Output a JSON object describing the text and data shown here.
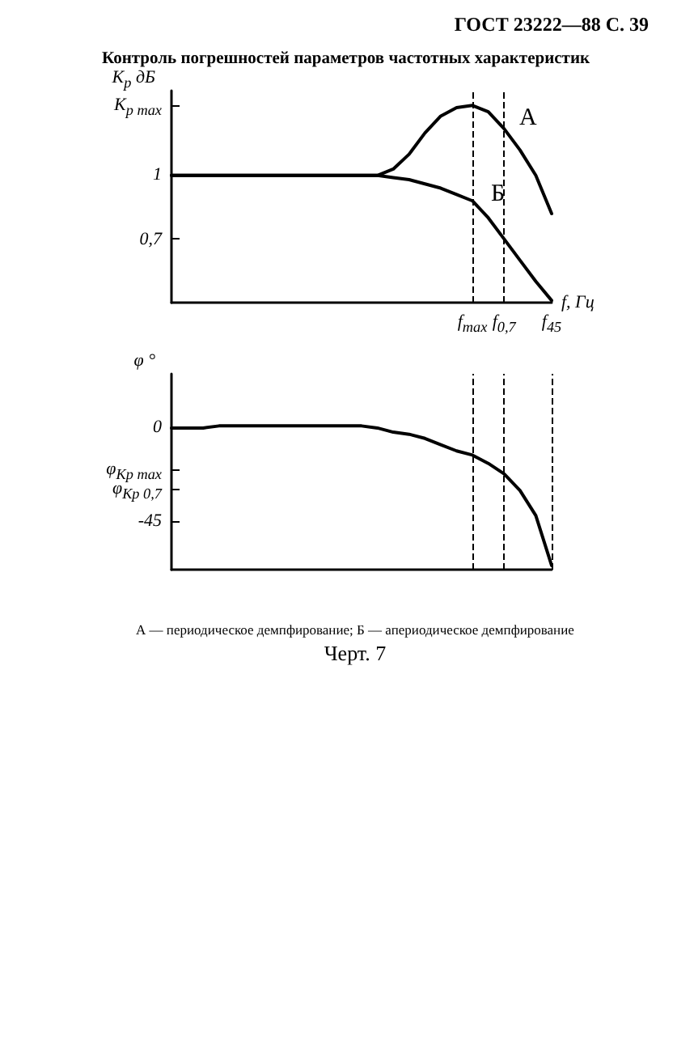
{
  "chart_data": [
    {
      "type": "line",
      "title": "Контроль погрешностей параметров частотных характеристик",
      "annotations": [
        "ГОСТ 23222—88 С. 39"
      ],
      "xlabel": "f, Гц",
      "ylabel": "K$_{p}$ дБ",
      "categories": [
        null,
        null,
        null,
        null,
        null,
        null,
        null,
        null,
        null,
        null,
        null,
        null,
        null,
        null,
        null,
        null,
        null,
        null,
        null,
        "f$_{max}$",
        null,
        "f$_{0,7}$",
        null,
        null,
        "f$_{45}$"
      ],
      "series": [
        {
          "name": "А",
          "color": "#000000",
          "values": [
            1,
            1,
            1,
            1,
            1,
            1,
            1,
            1,
            1,
            1,
            1,
            1,
            1,
            1,
            1.03,
            1.1,
            1.2,
            1.28,
            1.32,
            1.33,
            1.3,
            1.22,
            1.12,
            1.0,
            0.82
          ]
        },
        {
          "name": "Б",
          "color": "#000000",
          "values": [
            1,
            1,
            1,
            1,
            1,
            1,
            1,
            1,
            1,
            1,
            1,
            1,
            1,
            1,
            0.99,
            0.98,
            0.96,
            0.94,
            0.91,
            0.88,
            0.8,
            0.7,
            0.6,
            0.5,
            0.41
          ]
        }
      ],
      "ylim": [
        0.4,
        1.4
      ],
      "yticks": [
        {
          "value": 0.7,
          "label": "0,7"
        },
        1,
        {
          "value": 1.33,
          "label": "K$_{p max}$"
        }
      ],
      "ref_lines": [
        {
          "axis": "x",
          "value": "f$_{max}$",
          "line_style": "dashed",
          "color": "#000000"
        },
        {
          "axis": "x",
          "value": "f$_{0,7}$",
          "line_style": "dashed",
          "color": "#000000"
        }
      ],
      "grid": false,
      "marker": "none",
      "line_style": "solid"
    },
    {
      "type": "line",
      "ylabel": "φ °",
      "annotations": [
        "А — периодическое демпфирование; Б — апериодическое демпфирование",
        "Черт. 7"
      ],
      "categories": [
        null,
        null,
        null,
        null,
        null,
        null,
        null,
        null,
        null,
        null,
        null,
        null,
        null,
        null,
        null,
        null,
        null,
        null,
        null,
        null,
        null,
        null,
        null,
        null,
        null
      ],
      "series": [
        {
          "color": "#000000",
          "values": [
            0,
            0,
            0,
            1,
            1,
            1,
            1,
            1,
            1,
            1,
            1,
            1,
            1,
            0,
            -2,
            -3,
            -5,
            -8,
            -11,
            -13,
            -17,
            -22,
            -30,
            -42,
            -66
          ]
        }
      ],
      "ylim": [
        -68,
        26
      ],
      "yticks": [
        {
          "value": -45,
          "label": "-45"
        },
        {
          "value": -29,
          "label": "φ$_{Kp 0,7}$"
        },
        {
          "value": -20,
          "label": "φ$_{Kp max}$"
        },
        0
      ],
      "tick_labels": "y",
      "grid": false,
      "marker": "none",
      "line_style": "solid"
    }
  ]
}
